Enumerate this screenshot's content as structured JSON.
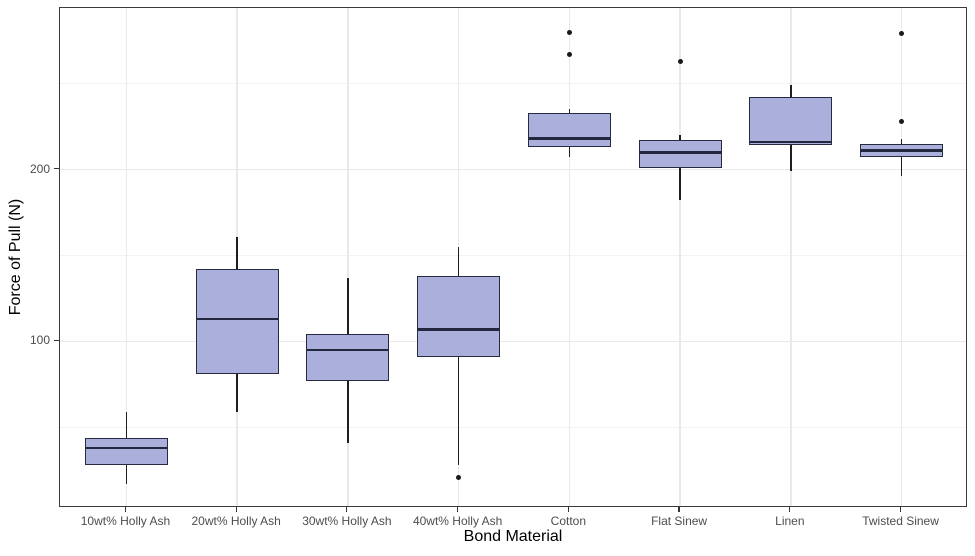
{
  "chart_data": {
    "type": "box",
    "title": "",
    "xlabel": "Bond Material",
    "ylabel": "Force of Pull (N)",
    "ylim": [
      3,
      294
    ],
    "y_major_ticks": [
      100,
      200
    ],
    "y_minor_gridlines": [
      50,
      150,
      250
    ],
    "grid": true,
    "legend": false,
    "categories": [
      "10wt% Holly Ash",
      "20wt% Holly Ash",
      "30wt% Holly Ash",
      "40wt% Holly Ash",
      "Cotton",
      "Flat Sinew",
      "Linen",
      "Twisted Sinew"
    ],
    "series": [
      {
        "name": "10wt% Holly Ash",
        "min": 17,
        "q1": 28,
        "median": 38,
        "q3": 44,
        "max": 59,
        "outliers": []
      },
      {
        "name": "20wt% Holly Ash",
        "min": 59,
        "q1": 81,
        "median": 113,
        "q3": 142,
        "max": 161,
        "outliers": []
      },
      {
        "name": "30wt% Holly Ash",
        "min": 41,
        "q1": 77,
        "median": 95,
        "q3": 104,
        "max": 137,
        "outliers": []
      },
      {
        "name": "40wt% Holly Ash",
        "min": 28,
        "q1": 91,
        "median": 107,
        "q3": 138,
        "max": 155,
        "outliers": [
          21
        ]
      },
      {
        "name": "Cotton",
        "min": 207,
        "q1": 213,
        "median": 218,
        "q3": 233,
        "max": 235,
        "outliers": [
          280,
          267
        ]
      },
      {
        "name": "Flat Sinew",
        "min": 182,
        "q1": 201,
        "median": 210,
        "q3": 217,
        "max": 220,
        "outliers": [
          263
        ]
      },
      {
        "name": "Linen",
        "min": 199,
        "q1": 214,
        "median": 216,
        "q3": 242,
        "max": 249,
        "outliers": []
      },
      {
        "name": "Twisted Sinew",
        "min": 196,
        "q1": 207,
        "median": 211,
        "q3": 215,
        "max": 218,
        "outliers": [
          279,
          228
        ]
      }
    ],
    "colors": {
      "box_fill": "#aab0db",
      "box_border": "#272b42",
      "median_line": "#232740",
      "whisker": "#1f1f1f",
      "outlier": "#1a1a1a",
      "grid_major": "#e9e9e9",
      "grid_minor": "#f3f3f3",
      "panel_border": "#3a3a3a",
      "tick_label": "#4d4d4d",
      "axis_title": "#000000",
      "background": "#ffffff"
    }
  }
}
